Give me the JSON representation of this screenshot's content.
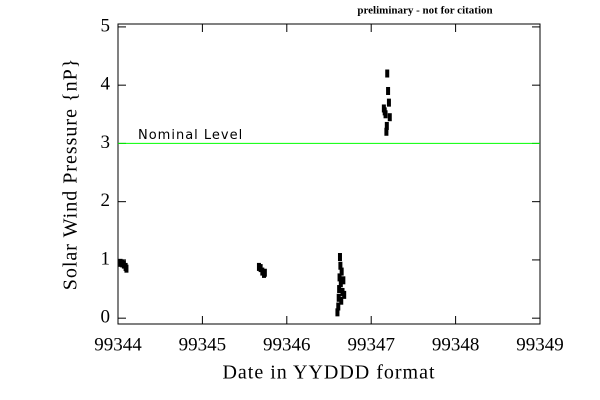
{
  "chart_data": {
    "type": "scatter",
    "annotation": "preliminary - not for citation",
    "x_label": "Date in YYDDD format",
    "y_label": "Solar Wind Pressure {nP}",
    "series": [
      {
        "color": "#000000",
        "x": [
          99344.03,
          99344.05,
          99344.07,
          99344.09,
          99344.1,
          99345.67,
          99345.69,
          99345.71,
          99345.73,
          99345.74,
          99346.6,
          99346.61,
          99346.615,
          99346.62,
          99346.625,
          99346.63,
          99346.635,
          99346.64,
          99346.645,
          99346.65,
          99346.66,
          99346.67,
          99346.68,
          99347.15,
          99347.16,
          99347.17,
          99347.18,
          99347.185,
          99347.19,
          99347.2,
          99347.21,
          99347.22
        ],
        "values": [
          0.95,
          0.94,
          0.92,
          0.88,
          0.85,
          0.88,
          0.86,
          0.8,
          0.76,
          0.78,
          0.1,
          0.2,
          0.35,
          0.5,
          0.7,
          1.05,
          0.9,
          0.6,
          0.3,
          0.8,
          0.45,
          0.65,
          0.4,
          3.6,
          3.55,
          3.5,
          3.2,
          3.3,
          4.2,
          3.9,
          3.7,
          3.45
        ]
      }
    ],
    "reference_lines": [
      {
        "value": 3,
        "label": "Nominal Level",
        "color": "#00ff00"
      }
    ],
    "xlim": [
      99344,
      99349
    ],
    "xticks": [
      99344,
      99345,
      99346,
      99347,
      99348,
      99349
    ],
    "ylim": [
      -0.1,
      5.05
    ],
    "yticks": [
      0,
      1,
      2,
      3,
      4,
      5
    ]
  }
}
